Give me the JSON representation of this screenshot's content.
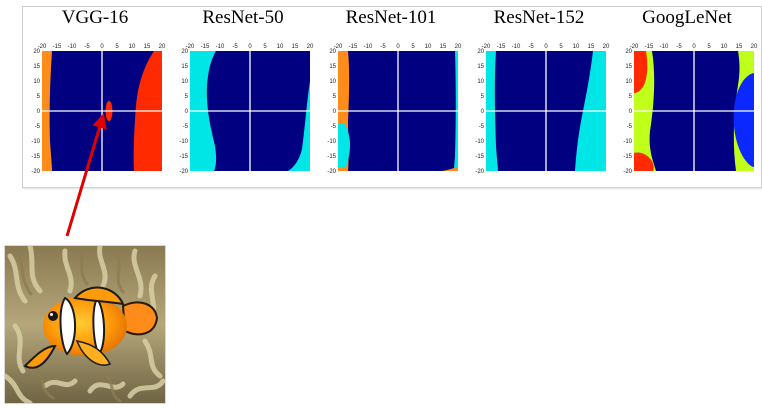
{
  "panels": [
    {
      "title": "VGG-16",
      "x_ticks": [
        "-20",
        "-15",
        "-10",
        "-5",
        "0",
        "5",
        "10",
        "15",
        "20"
      ],
      "y_ticks": [
        "20",
        "15",
        "10",
        "5",
        "0",
        "-5",
        "-10",
        "-15",
        "-20"
      ]
    },
    {
      "title": "ResNet-50",
      "x_ticks": [
        "-20",
        "-15",
        "-10",
        "-5",
        "0",
        "5",
        "10",
        "15",
        "20"
      ],
      "y_ticks": [
        "20",
        "15",
        "10",
        "5",
        "0",
        "-5",
        "-10",
        "-15",
        "-20"
      ]
    },
    {
      "title": "ResNet-101",
      "x_ticks": [
        "-20",
        "-15",
        "-10",
        "-5",
        "0",
        "5",
        "10",
        "15",
        "20"
      ],
      "y_ticks": [
        "20",
        "15",
        "10",
        "5",
        "0",
        "-5",
        "-10",
        "-15",
        "-20"
      ]
    },
    {
      "title": "ResNet-152",
      "x_ticks": [
        "-20",
        "-15",
        "-10",
        "-5",
        "0",
        "5",
        "10",
        "15",
        "20"
      ],
      "y_ticks": [
        "20",
        "15",
        "10",
        "5",
        "0",
        "-5",
        "-10",
        "-15",
        "-20"
      ]
    },
    {
      "title": "GoogLeNet",
      "x_ticks": [
        "-20",
        "-15",
        "-10",
        "-5",
        "0",
        "5",
        "10",
        "15",
        "20"
      ],
      "y_ticks": [
        "20",
        "15",
        "10",
        "5",
        "0",
        "-5",
        "-10",
        "-15",
        "-20"
      ]
    }
  ],
  "colors": {
    "navy": "#000080",
    "cyan": "#00e5e5",
    "red": "#ff2a00",
    "orange": "#ff8c1a",
    "yellow_green": "#bfff1a",
    "blue": "#0a28ff",
    "arrow": "#e00000"
  },
  "photo": {
    "subject": "clownfish-in-anemone"
  }
}
